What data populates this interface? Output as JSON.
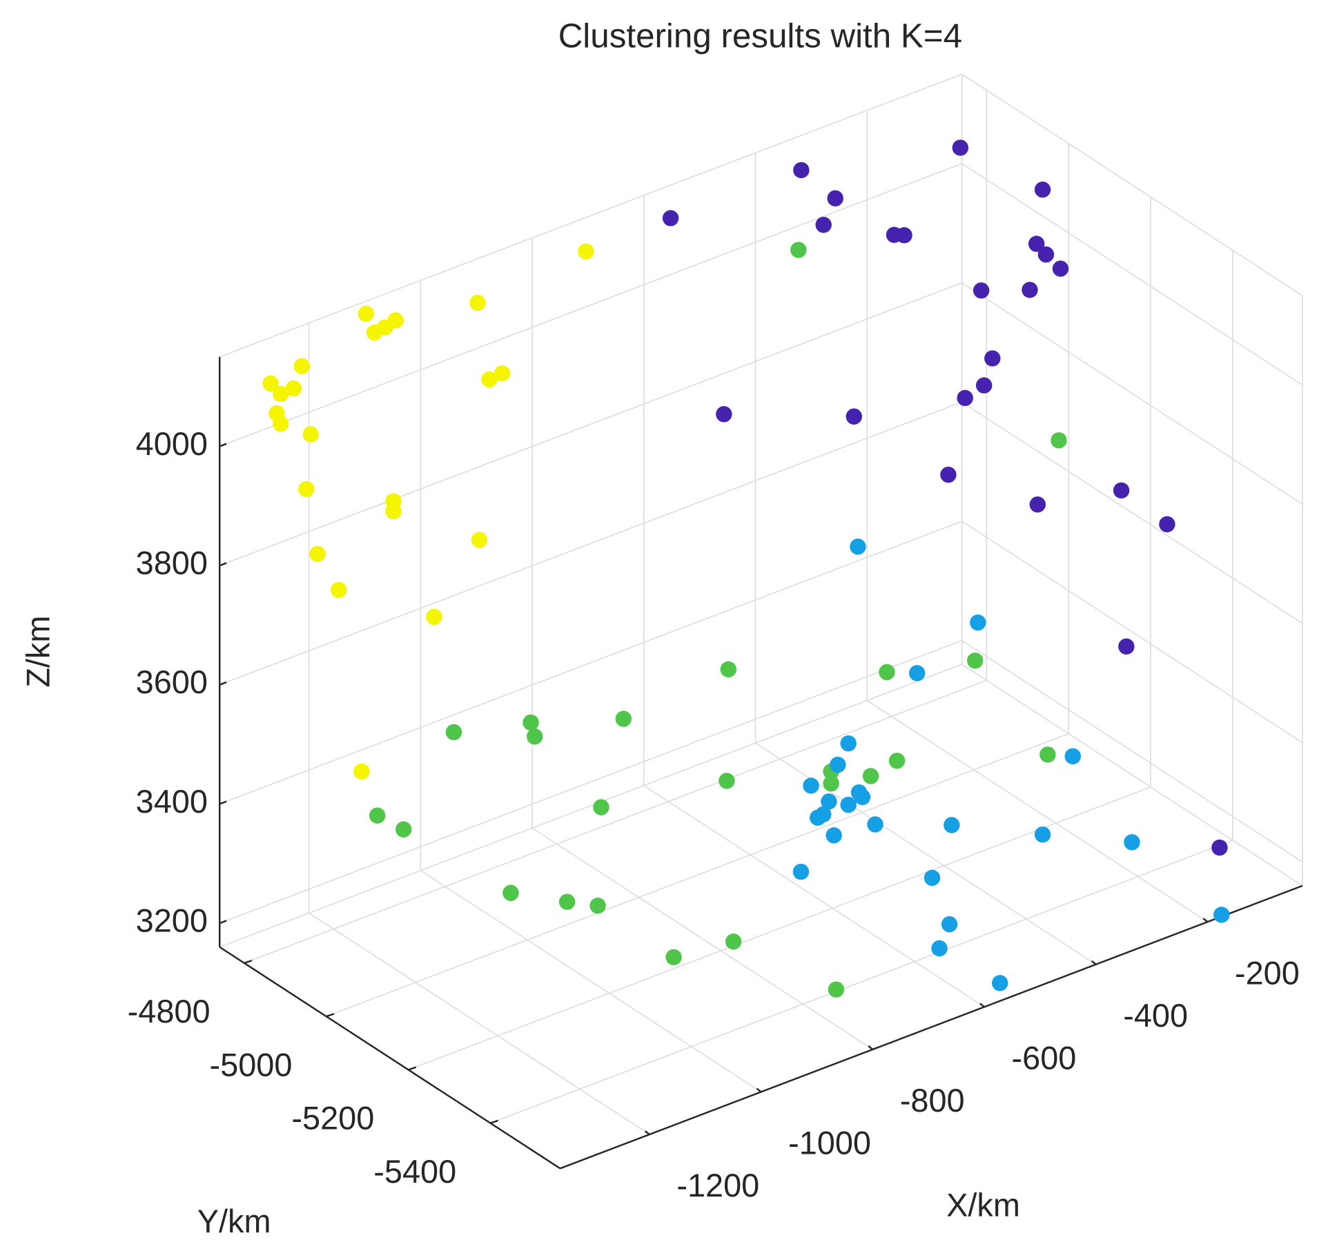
{
  "chart_data": {
    "type": "scatter3d",
    "title": "Clustering results with K=4",
    "xlabel": "X/km",
    "ylabel": "Y/km",
    "zlabel": "Z/km",
    "xlim": [
      -1360,
      -30
    ],
    "ylim": [
      -5570,
      -4740
    ],
    "zlim": [
      3160,
      4150
    ],
    "xticks": [
      -1200,
      -1000,
      -800,
      -600,
      -400,
      -200
    ],
    "yticks": [
      -5400,
      -5200,
      -5000,
      -4800
    ],
    "zticks": [
      3200,
      3400,
      3600,
      3800,
      4000
    ],
    "grid": true,
    "series": [
      {
        "color": "#f5f500",
        "x": [
          -711,
          -1105,
          -1090,
          -1071,
          -1052,
          -905,
          -1220,
          -1276,
          -1258,
          -1235,
          -1265,
          -1258,
          -884,
          -861,
          -1204,
          -1212,
          -1056,
          -1056,
          -902,
          -1192,
          -1154,
          -983,
          -1113
        ],
        "y": [
          -4750,
          -4750,
          -4750,
          -4750,
          -4750,
          -4750,
          -4750,
          -4750,
          -4750,
          -4750,
          -4750,
          -4750,
          -4750,
          -4750,
          -4750,
          -4750,
          -4750,
          -4750,
          -4750,
          -4750,
          -4750,
          -4750,
          -4750
        ],
        "z": [
          4100,
          4136,
          4099,
          4101,
          4106,
          4083,
          4089,
          4080,
          4056,
          4057,
          4026,
          4006,
          3947,
          3949,
          3969,
          3880,
          3804,
          3787,
          3684,
          3764,
          3690,
          3584,
          3371
        ]
      },
      {
        "color": "#4523ae",
        "x": [
          -55,
          -340,
          -279,
          -128,
          -574,
          -300,
          -247,
          -229,
          -139,
          -122,
          -96,
          -238,
          -151,
          -218,
          -233,
          -267,
          -552,
          -319,
          -297,
          -137,
          -134,
          -52,
          -125,
          -105
        ],
        "y": [
          -4770,
          -4770,
          -4770,
          -5070,
          -4770,
          -4770,
          -4870,
          -4870,
          -5070,
          -5070,
          -5070,
          -5070,
          -5070,
          -5070,
          -5070,
          -5070,
          -4870,
          -4870,
          -5070,
          -5070,
          -5270,
          -5270,
          -5270,
          -5470
        ],
        "z": [
          4049,
          4113,
          4044,
          4139,
          4116,
          4007,
          4016,
          4009,
          4052,
          4028,
          3995,
          4009,
          3979,
          3888,
          3848,
          3839,
          3824,
          3737,
          3721,
          3614,
          3726,
          3640,
          3461,
          3206
        ]
      },
      {
        "color": "#4fc64a",
        "x": [
          -345,
          -99,
          -691,
          -407,
          -249,
          -1183,
          -1045,
          -1038,
          -879,
          -694,
          -507,
          -507,
          -436,
          -389,
          -119,
          -919,
          -1320,
          -1273,
          -1081,
          -980,
          -925,
          -936,
          -829,
          -792
        ],
        "y": [
          -4770,
          -5070,
          -5070,
          -5070,
          -5070,
          -5070,
          -5070,
          -5070,
          -5070,
          -5070,
          -5070,
          -5070,
          -5070,
          -5070,
          -5070,
          -5070,
          -5070,
          -5070,
          -5070,
          -5070,
          -5070,
          -5270,
          -5270,
          -5470
        ],
        "z": [
          3981,
          3708,
          3535,
          3429,
          3392,
          3605,
          3572,
          3546,
          3519,
          3349,
          3298,
          3278,
          3265,
          3274,
          3188,
          3385,
          3514,
          3474,
          3299,
          3248,
          3222,
          3229,
          3217,
          3213
        ]
      },
      {
        "color": "#159fe4",
        "x": [
          -606,
          -391,
          -500,
          -623,
          -642,
          -604,
          -690,
          -658,
          -623,
          -598,
          -678,
          -668,
          -575,
          -649,
          -438,
          -275,
          -262,
          -368,
          -708,
          -473,
          -589,
          -607,
          -572,
          -175
        ],
        "y": [
          -5270,
          -5270,
          -5270,
          -5270,
          -5270,
          -5270,
          -5270,
          -5270,
          -5270,
          -5270,
          -5270,
          -5270,
          -5270,
          -5270,
          -5270,
          -5270,
          -5470,
          -5470,
          -5270,
          -5270,
          -5470,
          -5470,
          -5570,
          -5570
        ],
        "z": [
          3800,
          3596,
          3550,
          3476,
          3447,
          3387,
          3429,
          3391,
          3373,
          3377,
          3371,
          3373,
          3323,
          3331,
          3273,
          3199,
          3271,
          3453,
          3291,
          3197,
          3250,
          3216,
          3190,
          3163
        ]
      }
    ]
  }
}
